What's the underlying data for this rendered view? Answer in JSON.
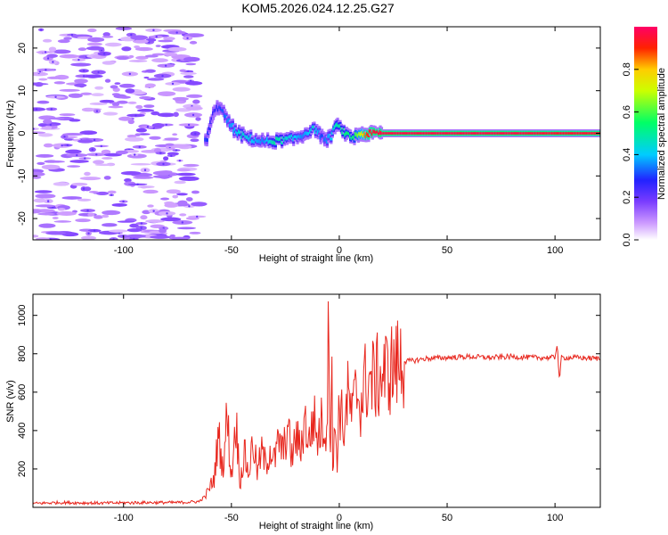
{
  "title": "KOM5.2026.024.12.25.G27",
  "chart_data": [
    {
      "type": "heatmap",
      "name": "spectrogram",
      "xlabel": "Height of straight line (km)",
      "ylabel": "Frequency (Hz)",
      "xlim": [
        -142,
        121
      ],
      "ylim": [
        -25,
        25
      ],
      "xticks": [
        -100,
        -50,
        0,
        50,
        100
      ],
      "yticks": [
        -20,
        -10,
        0,
        10,
        20
      ],
      "colorbar": {
        "label": "Normalized spectral amplitude",
        "range": [
          0,
          1
        ],
        "ticks": [
          0.0,
          0.2,
          0.4,
          0.6,
          0.8
        ],
        "colors": [
          "#ffffff",
          "#cc99ff",
          "#7a3cff",
          "#2222ff",
          "#00ccff",
          "#00ff66",
          "#ccff00",
          "#ffcc00",
          "#ff2200",
          "#ff0066"
        ]
      },
      "ridge": {
        "x": [
          -62,
          -58,
          -55,
          -52,
          -48,
          -45,
          -40,
          -35,
          -30,
          -25,
          -20,
          -17,
          -14,
          -12,
          -10,
          -8,
          -6,
          -4,
          -2,
          0,
          2,
          4,
          6,
          8,
          10,
          12,
          15,
          20,
          30,
          40,
          60,
          80,
          100,
          121
        ],
        "y": [
          -2,
          5,
          6.5,
          3,
          0.5,
          -0.5,
          -1.5,
          -2,
          -1.8,
          -1.5,
          -1,
          -0.5,
          0.5,
          1,
          0.8,
          -1,
          -1.5,
          -1,
          1.5,
          1.5,
          0.5,
          -0.5,
          -1,
          -0.5,
          0,
          -0.3,
          0,
          0,
          0,
          0,
          0,
          0,
          0,
          0
        ],
        "amp": [
          0.3,
          0.25,
          0.3,
          0.35,
          0.4,
          0.45,
          0.4,
          0.35,
          0.5,
          0.45,
          0.4,
          0.35,
          0.4,
          0.45,
          0.4,
          0.3,
          0.35,
          0.4,
          0.45,
          0.5,
          0.5,
          0.55,
          0.5,
          0.6,
          0.7,
          0.85,
          0.95,
          0.97,
          0.97,
          0.97,
          0.97,
          0.97,
          0.95,
          0.95
        ]
      }
    },
    {
      "type": "line",
      "name": "snr",
      "xlabel": "Height of straight line (km)",
      "ylabel": "SNR (v/v)",
      "xlim": [
        -142,
        121
      ],
      "ylim": [
        0,
        1110
      ],
      "xticks": [
        -100,
        -50,
        0,
        50,
        100
      ],
      "yticks": [
        200,
        400,
        600,
        800,
        1000
      ],
      "color": "#e8271e",
      "series": {
        "x": [
          -142,
          -130,
          -110,
          -90,
          -75,
          -65,
          -62,
          -58,
          -56,
          -54,
          -52,
          -50,
          -48,
          -46,
          -44,
          -42,
          -40,
          -38,
          -36,
          -34,
          -32,
          -30,
          -28,
          -26,
          -24,
          -22,
          -20,
          -18,
          -16,
          -14,
          -12,
          -10,
          -8,
          -6,
          -5,
          -4,
          -3.5,
          -3,
          -2,
          -1,
          0,
          2,
          4,
          6,
          8,
          10,
          12,
          15,
          20,
          25,
          30,
          35,
          40,
          50,
          60,
          70,
          80,
          90,
          100,
          101,
          102,
          103,
          110,
          121
        ],
        "y": [
          20,
          25,
          22,
          25,
          25,
          30,
          60,
          150,
          380,
          200,
          480,
          150,
          470,
          130,
          280,
          170,
          350,
          180,
          290,
          220,
          310,
          240,
          350,
          280,
          420,
          260,
          370,
          300,
          460,
          330,
          480,
          350,
          450,
          380,
          900,
          300,
          1110,
          90,
          450,
          250,
          550,
          400,
          580,
          470,
          620,
          540,
          650,
          660,
          690,
          730,
          760,
          765,
          775,
          780,
          785,
          780,
          785,
          780,
          780,
          860,
          660,
          780,
          780,
          775
        ]
      }
    }
  ]
}
